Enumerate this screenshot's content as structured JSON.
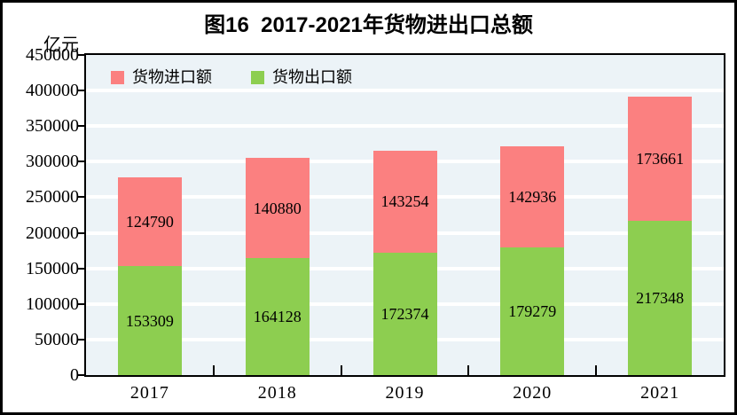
{
  "chart": {
    "title": "图16  2017-2021年货物进出口总额",
    "y_axis_unit": "亿元"
  },
  "chart_data": {
    "type": "bar",
    "stacked": true,
    "title": "图16  2017-2021年货物进出口总额",
    "ylabel": "亿元",
    "categories": [
      "2017",
      "2018",
      "2019",
      "2020",
      "2021"
    ],
    "series": [
      {
        "name": "货物出口额",
        "color": "#8DCE50",
        "values": [
          153309,
          164128,
          172374,
          179279,
          217348
        ]
      },
      {
        "name": "货物进口额",
        "color": "#FB8080",
        "values": [
          124790,
          140880,
          143254,
          142936,
          173661
        ]
      }
    ],
    "legend": [
      {
        "label": "货物进口额",
        "color": "#FB8080"
      },
      {
        "label": "货物出口额",
        "color": "#8DCE50"
      }
    ],
    "ylim": [
      0,
      450000
    ],
    "yticks": [
      0,
      50000,
      100000,
      150000,
      200000,
      250000,
      300000,
      350000,
      400000,
      450000
    ],
    "grid": true,
    "grid_color": "#FFFFFF",
    "plot_bg": "#ECF3F7",
    "axis_color": "#000000",
    "legend_position": "top-left-inside",
    "bar_value_labels": "centered-in-segment"
  }
}
